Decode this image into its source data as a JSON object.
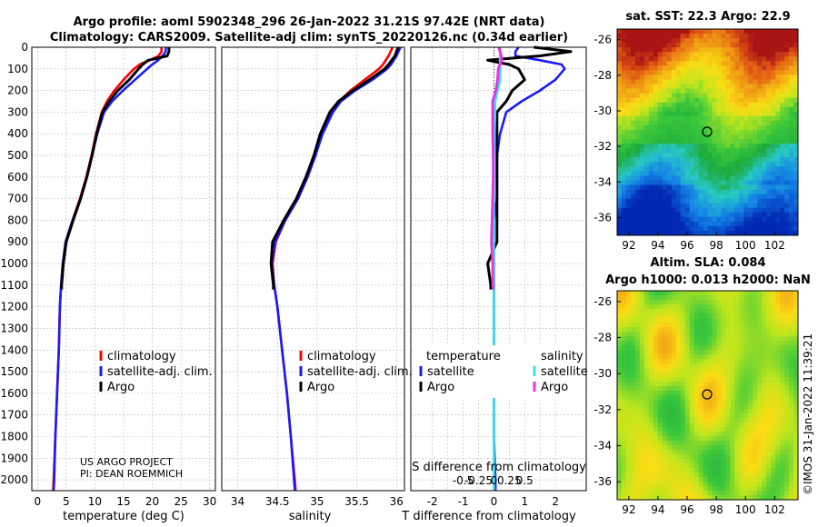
{
  "title_line1": "Argo profile: aoml 5902348_296 26-Jan-2022 31.21S 97.42E (NRT data)",
  "title_line2": "Climatology: CARS2009. Satellite-adj clim: synTS_20220126.nc (0.34d earlier)",
  "colors": {
    "climatology": "#ff0000",
    "satellite": "#1a1aff",
    "argo": "#000000",
    "sal_satellite": "#33e6e6",
    "sal_argo": "#e633e6"
  },
  "depth_ticks": [
    "0",
    "100",
    "200",
    "300",
    "400",
    "500",
    "600",
    "700",
    "800",
    "900",
    "1000",
    "1100",
    "1200",
    "1300",
    "1400",
    "1500",
    "1600",
    "1700",
    "1800",
    "1900",
    "2000"
  ],
  "legend_main": {
    "climatology": "climatology",
    "satellite": "satellite-adj. clim.",
    "argo": "Argo"
  },
  "legend_diff": {
    "temperature_header": "temperature",
    "salinity_header": "salinity",
    "satellite": "satellite",
    "argo": "Argo"
  },
  "credit_line1": "US ARGO PROJECT",
  "credit_line2": "PI: DEAN ROEMMICH",
  "sst_map": {
    "title": "sat. SST: 22.3 Argo: 22.9",
    "x_ticks": [
      "92",
      "94",
      "96",
      "98",
      "100",
      "102"
    ],
    "y_ticks": [
      "-26",
      "-28",
      "-30",
      "-32",
      "-34",
      "-36"
    ]
  },
  "sla_map": {
    "title_line1": "Altim. SLA: 0.084",
    "title_line2": "Argo h1000: 0.013 h2000: NaN",
    "x_ticks": [
      "92",
      "94",
      "96",
      "98",
      "100",
      "102"
    ],
    "y_ticks": [
      "-26",
      "-28",
      "-30",
      "-32",
      "-34",
      "-36"
    ]
  },
  "timestamp": "©IMOS 31-Jan-2022 11:39:21",
  "chart_data": [
    {
      "type": "line",
      "panel": "temperature",
      "xlabel": "temperature (deg C)",
      "ylabel": "",
      "x_ticks": [
        "0",
        "5",
        "10",
        "15",
        "20",
        "25",
        "30"
      ],
      "xlim": [
        -1,
        31
      ],
      "ylim": [
        2050,
        0
      ],
      "series": [
        {
          "name": "climatology",
          "depth": [
            0,
            20,
            40,
            60,
            80,
            100,
            150,
            200,
            250,
            300,
            400,
            500,
            600,
            700,
            800,
            900,
            1000,
            1100,
            1200,
            1400,
            1600,
            1800,
            2000,
            2050
          ],
          "values": [
            21.6,
            21.6,
            21.1,
            19.5,
            17.8,
            16.8,
            15.0,
            13.4,
            12.1,
            11.2,
            10.2,
            9.4,
            8.5,
            7.4,
            6.1,
            4.9,
            4.4,
            4.1,
            3.9,
            3.7,
            3.4,
            3.1,
            2.8,
            2.7
          ]
        },
        {
          "name": "satellite-adj. clim.",
          "depth": [
            0,
            20,
            40,
            60,
            80,
            100,
            150,
            200,
            250,
            300,
            400,
            500,
            600,
            700,
            800,
            900,
            1000,
            1100,
            1200,
            1400,
            1600,
            1800,
            2000,
            2050
          ],
          "values": [
            22.4,
            22.3,
            21.8,
            21.0,
            20.0,
            19.1,
            17.0,
            14.9,
            13.0,
            11.6,
            10.4,
            9.5,
            8.6,
            7.5,
            6.1,
            4.9,
            4.4,
            4.1,
            3.9,
            3.7,
            3.4,
            3.1,
            2.9,
            2.8
          ]
        },
        {
          "name": "Argo",
          "depth": [
            0,
            20,
            40,
            50,
            60,
            80,
            100,
            150,
            200,
            250,
            300,
            400,
            500,
            600,
            700,
            800,
            900,
            1000,
            1100,
            1120
          ],
          "values": [
            22.9,
            22.9,
            22.6,
            21.0,
            19.3,
            18.3,
            17.6,
            16.0,
            14.0,
            12.5,
            11.3,
            10.3,
            9.5,
            8.6,
            7.5,
            6.2,
            5.0,
            4.5,
            4.2,
            4.2
          ]
        }
      ]
    },
    {
      "type": "line",
      "panel": "salinity",
      "xlabel": "salinity",
      "ylabel": "",
      "x_ticks": [
        "34",
        "34.5",
        "35",
        "35.5",
        "36"
      ],
      "xlim": [
        33.8,
        36.1
      ],
      "ylim": [
        2050,
        0
      ],
      "series": [
        {
          "name": "climatology",
          "depth": [
            0,
            40,
            80,
            100,
            150,
            200,
            250,
            300,
            400,
            500,
            600,
            700,
            800,
            900,
            1000,
            1100,
            1200,
            1400,
            1600,
            1800,
            2000,
            2050
          ],
          "values": [
            35.95,
            35.9,
            35.83,
            35.78,
            35.6,
            35.42,
            35.28,
            35.18,
            35.06,
            34.98,
            34.88,
            34.76,
            34.6,
            34.48,
            34.44,
            34.46,
            34.5,
            34.56,
            34.62,
            34.67,
            34.72,
            34.73
          ]
        },
        {
          "name": "satellite-adj. clim.",
          "depth": [
            0,
            40,
            80,
            100,
            150,
            200,
            250,
            300,
            400,
            500,
            600,
            700,
            800,
            900,
            1000,
            1100,
            1200,
            1400,
            1600,
            1800,
            2000,
            2050
          ],
          "values": [
            36.05,
            36.0,
            35.93,
            35.88,
            35.7,
            35.48,
            35.3,
            35.2,
            35.07,
            34.98,
            34.88,
            34.76,
            34.6,
            34.47,
            34.43,
            34.46,
            34.5,
            34.56,
            34.62,
            34.67,
            34.71,
            34.72
          ]
        },
        {
          "name": "Argo",
          "depth": [
            0,
            40,
            80,
            100,
            150,
            200,
            250,
            300,
            400,
            500,
            600,
            700,
            800,
            900,
            1000,
            1100,
            1120
          ],
          "values": [
            36.02,
            35.98,
            35.9,
            35.85,
            35.66,
            35.45,
            35.27,
            35.16,
            35.04,
            34.96,
            34.86,
            34.74,
            34.58,
            34.44,
            34.42,
            34.45,
            34.45
          ]
        }
      ]
    },
    {
      "type": "line",
      "panel": "difference",
      "xlabel": "T difference from climatology",
      "xlabel_top": "S difference from climatology",
      "x_ticks": [
        "-2",
        "-1.5",
        "-1",
        "-0.5",
        "0",
        "0.5",
        "1",
        "1.5",
        "2"
      ],
      "x_ticks_labels": [
        "-2",
        "",
        "-1",
        "",
        "0",
        "",
        "1",
        "",
        "2"
      ],
      "top_ticks": [
        "-0.5",
        "-0.25",
        "0",
        "0.25",
        "0.5"
      ],
      "xlim": [
        -2.7,
        3.0
      ],
      "ylim": [
        2050,
        0
      ],
      "series": [
        {
          "name": "temperature satellite",
          "depth": [
            0,
            20,
            40,
            60,
            80,
            100,
            150,
            200,
            250,
            300,
            400,
            500,
            600,
            700,
            800,
            900,
            1000,
            1100,
            1200,
            1400,
            1600,
            1800,
            2000,
            2050
          ],
          "values": [
            0.8,
            0.7,
            0.7,
            1.5,
            2.2,
            2.3,
            2.0,
            1.5,
            0.9,
            0.4,
            0.2,
            0.1,
            0.1,
            0.1,
            0.0,
            0.0,
            0.0,
            0.0,
            0.0,
            0.0,
            0.0,
            0.0,
            0.05,
            0.05
          ]
        },
        {
          "name": "temperature Argo",
          "depth": [
            0,
            20,
            40,
            60,
            80,
            100,
            150,
            200,
            250,
            300,
            400,
            500,
            600,
            700,
            800,
            900,
            1000,
            1100,
            1120
          ],
          "values": [
            1.3,
            2.5,
            1.5,
            -0.2,
            0.5,
            0.8,
            1.0,
            0.6,
            0.4,
            0.1,
            0.1,
            0.1,
            0.1,
            0.1,
            0.1,
            0.1,
            -0.2,
            -0.1,
            -0.1
          ]
        },
        {
          "name": "salinity satellite",
          "depth": [
            0,
            20,
            40,
            60,
            80,
            100,
            150,
            200,
            250,
            300,
            400,
            500,
            600,
            700,
            800,
            900,
            1000,
            1100,
            1200,
            1400,
            1600,
            1800,
            2000,
            2050
          ],
          "values": [
            0.1,
            0.1,
            0.1,
            0.1,
            0.1,
            0.1,
            0.1,
            0.06,
            0.02,
            0.02,
            0.01,
            0.0,
            0.0,
            0.0,
            0.0,
            0.0,
            0.0,
            0.0,
            0.0,
            0.0,
            0.0,
            0.0,
            0.0,
            0.0
          ]
        },
        {
          "name": "salinity Argo",
          "depth": [
            0,
            20,
            40,
            60,
            80,
            100,
            150,
            200,
            250,
            300,
            400,
            500,
            600,
            700,
            800,
            900,
            1000,
            1100,
            1120
          ],
          "values": [
            0.08,
            0.1,
            0.12,
            0.13,
            0.1,
            0.07,
            0.06,
            0.03,
            -0.02,
            -0.02,
            -0.02,
            -0.01,
            -0.01,
            -0.02,
            -0.03,
            -0.04,
            -0.02,
            -0.02,
            -0.01
          ]
        }
      ]
    }
  ]
}
